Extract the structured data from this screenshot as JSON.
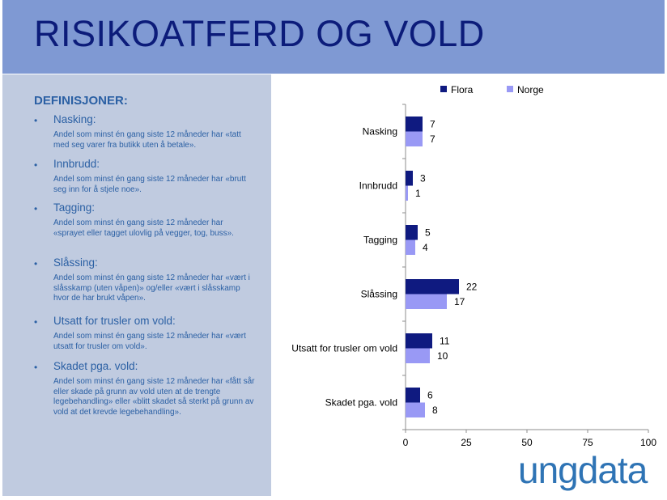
{
  "slide": {
    "title": "RISIKOATFERD OG VOLD",
    "logo_text": "ungdata"
  },
  "definitions": {
    "heading": "DEFINISJONER:",
    "items": [
      {
        "term": "Nasking:",
        "desc": "Andel som minst én gang siste 12 måneder har «tatt med seg varer fra butikk uten å betale»."
      },
      {
        "term": "Innbrudd:",
        "desc": "Andel som minst én gang siste 12 måneder har «brutt seg inn for å stjele noe»."
      },
      {
        "term": "Tagging:",
        "desc": "Andel som minst én gang siste 12 måneder har «sprayet eller tagget ulovlig på vegger, tog, buss»."
      },
      {
        "term": "Slåssing:",
        "desc": "Andel som minst én gang siste 12 måneder har «vært i slåsskamp (uten våpen)» og/eller «vært i slåsskamp hvor de har brukt våpen»."
      },
      {
        "term": "Utsatt for trusler om vold:",
        "desc": "Andel som minst én gang siste 12 måneder har «vært utsatt for trusler om vold»."
      },
      {
        "term": "Skadet pga. vold:",
        "desc": "Andel som minst én gang siste 12 måneder har «fått sår eller skade på grunn av vold uten at de trengte legebehandling» eller «blitt skadet så sterkt på grunn av vold at det krevde legebehandling»."
      }
    ]
  },
  "colors": {
    "flora": "#0f1a80",
    "norge": "#9999f5",
    "header_bg": "#7f99d3",
    "panel_bg": "#c0cbe0",
    "title": "#0c1c7a",
    "def_text": "#2b60a4",
    "logo": "#2f74b5"
  },
  "chart_data": {
    "type": "bar",
    "orientation": "horizontal",
    "categories": [
      "Nasking",
      "Innbrudd",
      "Tagging",
      "Slåssing",
      "Utsatt for trusler om vold",
      "Skadet pga. vold"
    ],
    "series": [
      {
        "name": "Flora",
        "values": [
          7,
          3,
          5,
          22,
          11,
          6
        ]
      },
      {
        "name": "Norge",
        "values": [
          7,
          1,
          4,
          17,
          10,
          8
        ]
      }
    ],
    "xlim": [
      0,
      100
    ],
    "xticks": [
      "0",
      "25",
      "50",
      "75",
      "100"
    ],
    "legend_position": "top",
    "grid": false
  }
}
